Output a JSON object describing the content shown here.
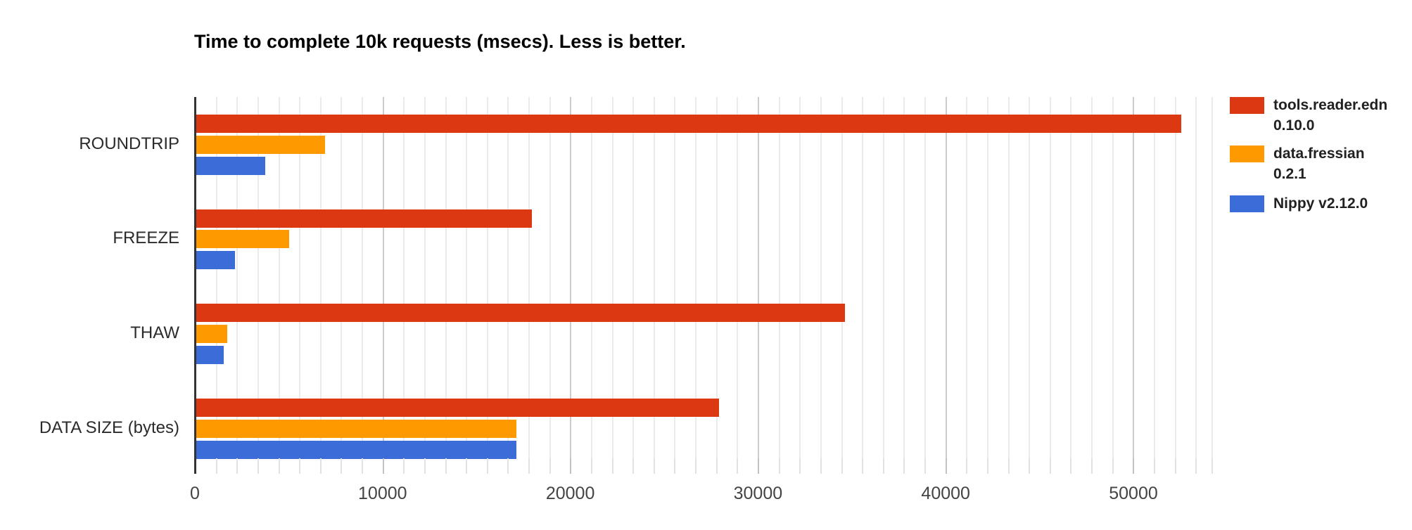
{
  "title": "Time to complete 10k requests (msecs). Less is better.",
  "chart_data": {
    "type": "bar",
    "orientation": "horizontal",
    "title": "Time to complete 10k requests (msecs). Less is better.",
    "categories": [
      "ROUNDTRIP",
      "FREEZE",
      "THAW",
      "DATA SIZE (bytes)"
    ],
    "series": [
      {
        "name": "tools.reader.edn 0.10.0",
        "legend_lines": [
          "tools.reader.edn",
          "0.10.0"
        ],
        "color": "#dc3912",
        "values": [
          52500,
          17900,
          34600,
          27900
        ]
      },
      {
        "name": "data.fressian 0.2.1",
        "legend_lines": [
          "data.fressian",
          "0.2.1"
        ],
        "color": "#ff9900",
        "values": [
          6900,
          5000,
          1700,
          17100
        ]
      },
      {
        "name": "Nippy v2.12.0",
        "legend_lines": [
          "Nippy v2.12.0"
        ],
        "color": "#3b6cd8",
        "values": [
          3700,
          2100,
          1500,
          17100
        ]
      }
    ],
    "x_ticks": [
      {
        "label": "0",
        "value": 0
      },
      {
        "label": "10000",
        "value": 10000
      },
      {
        "label": "20000",
        "value": 20000
      },
      {
        "label": "30000",
        "value": 30000
      },
      {
        "label": "40000",
        "value": 40000
      },
      {
        "label": "50000",
        "value": 50000
      }
    ],
    "xlim": [
      0,
      54200
    ],
    "xlabel": "",
    "ylabel": "",
    "grid": true,
    "minor_gridlines_per_major": 9,
    "legend_position": "right",
    "axis_color": "#333333",
    "major_grid_color": "#cccccc",
    "minor_grid_color": "#ebebeb"
  }
}
